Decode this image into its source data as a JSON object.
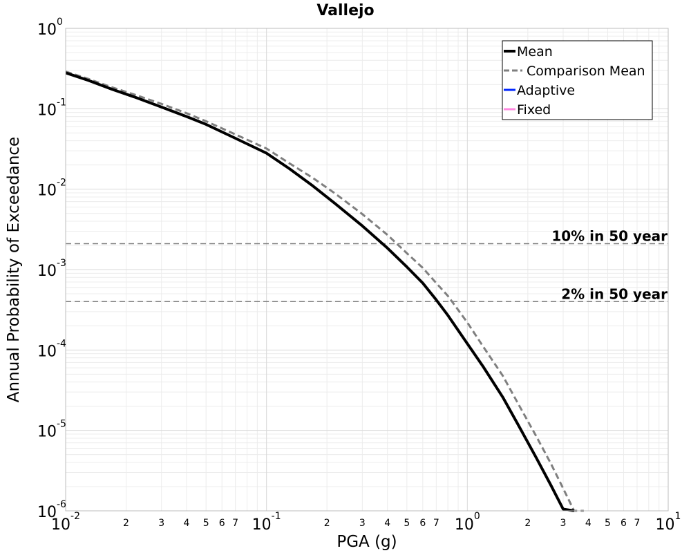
{
  "chart_data": {
    "type": "line",
    "title": "Vallejo",
    "xlabel": "PGA (g)",
    "ylabel": "Annual Probability of Exceedance",
    "xscale": "log",
    "yscale": "log",
    "xlim": [
      0.01,
      10
    ],
    "ylim": [
      1e-06,
      1
    ],
    "grid": true,
    "legend_position": "top-right",
    "x_major_ticks": [
      {
        "base": "10",
        "exp": "-2"
      },
      {
        "base": "10",
        "exp": "-1"
      },
      {
        "base": "10",
        "exp": "0"
      },
      {
        "base": "10",
        "exp": "1"
      }
    ],
    "x_minor_tick_labels": [
      "2",
      "3",
      "4",
      "5",
      "6",
      "7"
    ],
    "y_major_ticks": [
      {
        "base": "10",
        "exp": "0"
      },
      {
        "base": "10",
        "exp": "-1"
      },
      {
        "base": "10",
        "exp": "-2"
      },
      {
        "base": "10",
        "exp": "-3"
      },
      {
        "base": "10",
        "exp": "-4"
      },
      {
        "base": "10",
        "exp": "-5"
      },
      {
        "base": "10",
        "exp": "-6"
      }
    ],
    "series": [
      {
        "name": "Mean",
        "color": "#000000",
        "style": "solid",
        "x": [
          0.01,
          0.013,
          0.017,
          0.022,
          0.03,
          0.04,
          0.05,
          0.07,
          0.1,
          0.13,
          0.17,
          0.22,
          0.3,
          0.4,
          0.5,
          0.6,
          0.7,
          0.8,
          1.0,
          1.2,
          1.5,
          1.8,
          2.2,
          2.6,
          3.0,
          3.4
        ],
        "y": [
          0.28,
          0.225,
          0.175,
          0.14,
          0.105,
          0.08,
          0.064,
          0.043,
          0.028,
          0.018,
          0.011,
          0.0066,
          0.0035,
          0.00185,
          0.00108,
          0.00068,
          0.00042,
          0.00027,
          0.00012,
          6.2e-05,
          2.6e-05,
          1.15e-05,
          4.6e-06,
          2.1e-06,
          1.05e-06,
          6e-07
        ]
      },
      {
        "name": "Comparison Mean",
        "color": "#7f7f7f",
        "style": "dashed",
        "x": [
          0.01,
          0.013,
          0.017,
          0.022,
          0.03,
          0.04,
          0.05,
          0.07,
          0.1,
          0.13,
          0.17,
          0.22,
          0.3,
          0.4,
          0.5,
          0.6,
          0.7,
          0.8,
          1.0,
          1.2,
          1.5,
          1.8,
          2.2,
          2.6,
          3.0,
          3.4,
          3.8
        ],
        "y": [
          0.29,
          0.235,
          0.185,
          0.15,
          0.115,
          0.088,
          0.07,
          0.048,
          0.032,
          0.021,
          0.0138,
          0.0088,
          0.0049,
          0.0027,
          0.0016,
          0.00105,
          0.00068,
          0.00047,
          0.00022,
          0.00011,
          4.8e-05,
          2.1e-05,
          8.5e-06,
          3.9e-06,
          1.9e-06,
          9.5e-07,
          5e-07
        ]
      },
      {
        "name": "Adaptive",
        "color": "#0026ff",
        "style": "solid",
        "x": [],
        "y": []
      },
      {
        "name": "Fixed",
        "color": "#ff88e0",
        "style": "solid",
        "x": [],
        "y": []
      }
    ],
    "reference_lines": [
      {
        "label": "10% in 50 year",
        "y": 0.0021,
        "color": "#7f7f7f"
      },
      {
        "label": "2% in 50 year",
        "y": 0.0004,
        "color": "#7f7f7f"
      }
    ]
  }
}
